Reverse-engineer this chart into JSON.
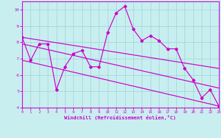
{
  "xlabel": "Windchill (Refroidissement éolien,°C)",
  "bg_color": "#c8eef0",
  "line_color": "#cc00cc",
  "grid_color": "#a0d8d8",
  "x_hourly": [
    0,
    1,
    2,
    3,
    4,
    5,
    6,
    7,
    8,
    9,
    10,
    11,
    12,
    13,
    14,
    15,
    16,
    17,
    18,
    19,
    20,
    21,
    22,
    23
  ],
  "y_hourly": [
    8.3,
    6.9,
    7.9,
    7.9,
    5.1,
    6.5,
    7.3,
    7.5,
    6.5,
    6.5,
    8.6,
    9.8,
    10.2,
    8.8,
    8.1,
    8.4,
    8.1,
    7.6,
    7.6,
    6.4,
    5.7,
    4.6,
    5.1,
    4.1
  ],
  "trend1_start": 8.3,
  "trend1_end": 6.4,
  "trend2_start": 7.9,
  "trend2_end": 5.2,
  "trend3_start": 6.9,
  "trend3_end": 4.1,
  "ylim": [
    4,
    10.5
  ],
  "xlim": [
    0,
    23
  ],
  "yticks": [
    4,
    5,
    6,
    7,
    8,
    9,
    10
  ]
}
